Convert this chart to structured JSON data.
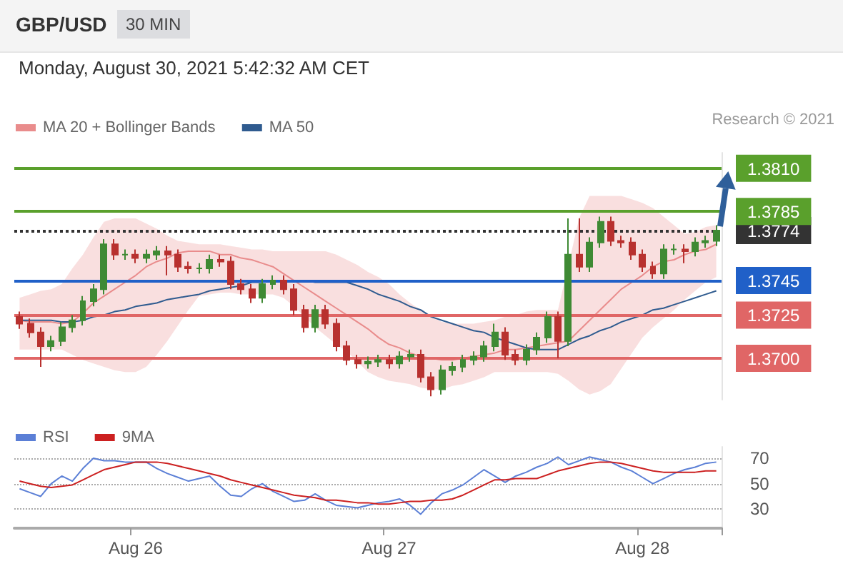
{
  "chart_data": [
    {
      "type": "candlestick",
      "title": "GBP/USD",
      "subtitle": "Monday, August 30, 2021 5:42:32 AM CET",
      "annotations": [
        "30 MIN",
        "Research © 2021"
      ],
      "categories": [
        null,
        null,
        null,
        null,
        null,
        null,
        null,
        null,
        null,
        null,
        null,
        null,
        null,
        null,
        null,
        null,
        null,
        null,
        null,
        null,
        null,
        null,
        null,
        null,
        null,
        null,
        null,
        null,
        null,
        null,
        null,
        null,
        null,
        null,
        null,
        null,
        null,
        null,
        null,
        null,
        null,
        null,
        null,
        null,
        null,
        null,
        null,
        null,
        null,
        null,
        null,
        null,
        null,
        null,
        null,
        null,
        null,
        null,
        null,
        null,
        null,
        null,
        null,
        null,
        null,
        null,
        null
      ],
      "ohlc": [
        [
          1.3724,
          1.3727,
          1.3717,
          1.372
        ],
        [
          1.372,
          1.3723,
          1.3712,
          1.3715
        ],
        [
          1.3715,
          1.3718,
          1.3695,
          1.3707
        ],
        [
          1.3707,
          1.3713,
          1.3704,
          1.371
        ],
        [
          1.371,
          1.3721,
          1.3707,
          1.3718
        ],
        [
          1.3718,
          1.3725,
          1.3715,
          1.3722
        ],
        [
          1.3722,
          1.3736,
          1.3719,
          1.3733
        ],
        [
          1.3733,
          1.3743,
          1.373,
          1.374
        ],
        [
          1.374,
          1.3769,
          1.3737,
          1.3766
        ],
        [
          1.3766,
          1.3769,
          1.3757,
          1.376
        ],
        [
          1.376,
          1.3763,
          1.3757,
          1.376
        ],
        [
          1.376,
          1.3763,
          1.3755,
          1.3758
        ],
        [
          1.3758,
          1.3763,
          1.3755,
          1.376
        ],
        [
          1.376,
          1.3765,
          1.3757,
          1.3762
        ],
        [
          1.3762,
          1.3765,
          1.3748,
          1.376
        ],
        [
          1.376,
          1.3763,
          1.375,
          1.3753
        ],
        [
          1.3753,
          1.3756,
          1.3749,
          1.3752
        ],
        [
          1.3752,
          1.3755,
          1.3749,
          1.3752
        ],
        [
          1.3752,
          1.376,
          1.3749,
          1.3757
        ],
        [
          1.3757,
          1.376,
          1.3753,
          1.3756
        ],
        [
          1.3756,
          1.3759,
          1.374,
          1.3743
        ],
        [
          1.3743,
          1.3746,
          1.3737,
          1.374
        ],
        [
          1.374,
          1.3743,
          1.3732,
          1.3735
        ],
        [
          1.3735,
          1.3746,
          1.3732,
          1.3743
        ],
        [
          1.3743,
          1.3748,
          1.374,
          1.3745
        ],
        [
          1.3745,
          1.3748,
          1.3737,
          1.374
        ],
        [
          1.374,
          1.3743,
          1.3725,
          1.3728
        ],
        [
          1.3728,
          1.3731,
          1.3715,
          1.3718
        ],
        [
          1.3718,
          1.3731,
          1.3715,
          1.3728
        ],
        [
          1.3728,
          1.3731,
          1.3717,
          1.372
        ],
        [
          1.372,
          1.3723,
          1.3704,
          1.3707
        ],
        [
          1.3707,
          1.371,
          1.3696,
          1.3699
        ],
        [
          1.3699,
          1.3702,
          1.3694,
          1.3697
        ],
        [
          1.3697,
          1.3701,
          1.3694,
          1.3698
        ],
        [
          1.3698,
          1.3702,
          1.3695,
          1.3699
        ],
        [
          1.3699,
          1.3702,
          1.3694,
          1.3697
        ],
        [
          1.3697,
          1.3704,
          1.3694,
          1.3701
        ],
        [
          1.3701,
          1.3705,
          1.3698,
          1.3702
        ],
        [
          1.3702,
          1.3705,
          1.3686,
          1.3689
        ],
        [
          1.3689,
          1.3692,
          1.3678,
          1.3682
        ],
        [
          1.3682,
          1.3696,
          1.3679,
          1.3693
        ],
        [
          1.3693,
          1.3698,
          1.369,
          1.3695
        ],
        [
          1.3695,
          1.3702,
          1.3692,
          1.3699
        ],
        [
          1.3699,
          1.3704,
          1.3696,
          1.3701
        ],
        [
          1.3701,
          1.371,
          1.3698,
          1.3707
        ],
        [
          1.3707,
          1.372,
          1.3704,
          1.3715
        ],
        [
          1.3715,
          1.3718,
          1.3699,
          1.3702
        ],
        [
          1.3702,
          1.3705,
          1.3696,
          1.3699
        ],
        [
          1.3699,
          1.3708,
          1.3696,
          1.3705
        ],
        [
          1.3705,
          1.3715,
          1.3702,
          1.3712
        ],
        [
          1.3712,
          1.3727,
          1.3709,
          1.3724
        ],
        [
          1.3724,
          1.3727,
          1.37,
          1.371
        ],
        [
          1.371,
          1.3781,
          1.3707,
          1.376
        ],
        [
          1.376,
          1.3781,
          1.375,
          1.3753
        ],
        [
          1.3753,
          1.377,
          1.375,
          1.3767
        ],
        [
          1.3767,
          1.3782,
          1.3764,
          1.3779
        ],
        [
          1.3779,
          1.3782,
          1.3765,
          1.3768
        ],
        [
          1.3768,
          1.3771,
          1.3764,
          1.3767
        ],
        [
          1.3767,
          1.377,
          1.3757,
          1.376
        ],
        [
          1.376,
          1.3763,
          1.375,
          1.3753
        ],
        [
          1.3753,
          1.3756,
          1.3746,
          1.3749
        ],
        [
          1.3749,
          1.3766,
          1.3746,
          1.3763
        ],
        [
          1.3763,
          1.3766,
          1.376,
          1.3763
        ],
        [
          1.3763,
          1.3766,
          1.3755,
          1.3762
        ],
        [
          1.3762,
          1.377,
          1.3759,
          1.3767
        ],
        [
          1.3767,
          1.3771,
          1.3764,
          1.3768
        ],
        [
          1.3768,
          1.3777,
          1.3765,
          1.3774
        ]
      ],
      "colors": [
        "#b8312f",
        "#b8312f",
        "#b8312f",
        "#3f8a34",
        "#3f8a34",
        "#3f8a34",
        "#3f8a34",
        "#3f8a34",
        "#3f8a34",
        "#b8312f",
        "#3f8a34",
        "#b8312f",
        "#3f8a34",
        "#3f8a34",
        "#b8312f",
        "#b8312f",
        "#b8312f",
        "#3f8a34",
        "#3f8a34",
        "#b8312f",
        "#b8312f",
        "#b8312f",
        "#b8312f",
        "#3f8a34",
        "#3f8a34",
        "#b8312f",
        "#b8312f",
        "#b8312f",
        "#3f8a34",
        "#b8312f",
        "#b8312f",
        "#b8312f",
        "#b8312f",
        "#3f8a34",
        "#3f8a34",
        "#b8312f",
        "#3f8a34",
        "#3f8a34",
        "#b8312f",
        "#b8312f",
        "#3f8a34",
        "#3f8a34",
        "#3f8a34",
        "#3f8a34",
        "#3f8a34",
        "#3f8a34",
        "#b8312f",
        "#b8312f",
        "#3f8a34",
        "#3f8a34",
        "#3f8a34",
        "#b8312f",
        "#3f8a34",
        "#b8312f",
        "#3f8a34",
        "#3f8a34",
        "#b8312f",
        "#b8312f",
        "#b8312f",
        "#b8312f",
        "#b8312f",
        "#3f8a34",
        "#3f8a34",
        "#b8312f",
        "#3f8a34",
        "#3f8a34",
        "#3f8a34"
      ],
      "series": [
        {
          "name": "MA 20 + Bollinger Bands",
          "type": "line",
          "color": "#e98c8c",
          "values": [
            1.3722,
            1.3721,
            1.3721,
            1.3721,
            1.372,
            1.3721,
            1.3726,
            1.3732,
            1.3736,
            1.374,
            1.3744,
            1.3748,
            1.3753,
            1.3756,
            1.3758,
            1.3761,
            1.3762,
            1.3762,
            1.3762,
            1.376,
            1.376,
            1.3758,
            1.3757,
            1.3755,
            1.3753,
            1.3749,
            1.3745,
            1.3741,
            1.3737,
            1.3733,
            1.3729,
            1.3725,
            1.3721,
            1.3717,
            1.3712,
            1.3708,
            1.3706,
            1.3703,
            1.3701,
            1.37,
            1.3699,
            1.3699,
            1.37,
            1.3701,
            1.3702,
            1.3703,
            1.3705,
            1.3705,
            1.3706,
            1.3707,
            1.3708,
            1.3709,
            1.371,
            1.3716,
            1.3722,
            1.3728,
            1.3734,
            1.374,
            1.3744,
            1.3748,
            1.3753,
            1.3756,
            1.3757,
            1.376,
            1.3762,
            1.3763,
            1.3766
          ],
          "upper": [
            1.3735,
            1.3737,
            1.3739,
            1.374,
            1.3743,
            1.3752,
            1.376,
            1.377,
            1.3779,
            1.3781,
            1.3781,
            1.3781,
            1.3778,
            1.3775,
            1.3771,
            1.3768,
            1.3767,
            1.3766,
            1.3766,
            1.3766,
            1.3765,
            1.3764,
            1.3763,
            1.3763,
            1.3762,
            1.3762,
            1.3762,
            1.3762,
            1.3762,
            1.3762,
            1.376,
            1.3757,
            1.3754,
            1.375,
            1.3747,
            1.3743,
            1.3737,
            1.3732,
            1.3728,
            1.3724,
            1.3721,
            1.372,
            1.372,
            1.372,
            1.3721,
            1.3722,
            1.3724,
            1.3725,
            1.3727,
            1.3728,
            1.3728,
            1.3728,
            1.3754,
            1.3781,
            1.3794,
            1.3794,
            1.3794,
            1.3794,
            1.3792,
            1.379,
            1.3787,
            1.3782,
            1.3777,
            1.3772,
            1.3773,
            1.3776,
            1.3777
          ],
          "lower": [
            1.3705,
            1.3705,
            1.3705,
            1.3705,
            1.3705,
            1.3702,
            1.3699,
            1.3697,
            1.3695,
            1.3693,
            1.3692,
            1.3692,
            1.3695,
            1.3702,
            1.371,
            1.3719,
            1.3728,
            1.3736,
            1.3737,
            1.3738,
            1.3738,
            1.3737,
            1.3737,
            1.3737,
            1.3737,
            1.3735,
            1.373,
            1.3724,
            1.3718,
            1.3713,
            1.3708,
            1.3704,
            1.3698,
            1.3692,
            1.3689,
            1.3687,
            1.3686,
            1.3685,
            1.3683,
            1.3682,
            1.3682,
            1.3684,
            1.3685,
            1.3687,
            1.3689,
            1.3692,
            1.3692,
            1.3692,
            1.3692,
            1.3692,
            1.3692,
            1.3691,
            1.3687,
            1.3682,
            1.3679,
            1.3681,
            1.3685,
            1.3694,
            1.3703,
            1.3712,
            1.3718,
            1.3723,
            1.3728,
            1.3734,
            1.3739,
            1.3744,
            1.3747
          ]
        },
        {
          "name": "MA 50",
          "type": "line",
          "color": "#2f5b8f",
          "values": [
            1.3722,
            1.3722,
            1.3722,
            1.3722,
            1.3721,
            1.3721,
            1.3722,
            1.3724,
            1.3725,
            1.3727,
            1.3728,
            1.373,
            1.3731,
            1.3732,
            1.3734,
            1.3735,
            1.3736,
            1.3737,
            1.3739,
            1.374,
            1.3741,
            1.3742,
            1.3744,
            1.3744,
            1.3745,
            1.3745,
            1.3745,
            1.3745,
            1.3744,
            1.3744,
            1.3744,
            1.3744,
            1.3742,
            1.374,
            1.3737,
            1.3735,
            1.3733,
            1.373,
            1.3728,
            1.3724,
            1.3722,
            1.372,
            1.3718,
            1.3716,
            1.3715,
            1.3712,
            1.371,
            1.3708,
            1.3706,
            1.3705,
            1.3705,
            1.3705,
            1.3708,
            1.3711,
            1.3713,
            1.3716,
            1.3718,
            1.3721,
            1.3723,
            1.3725,
            1.3728,
            1.3729,
            1.3731,
            1.3733,
            1.3735,
            1.3737,
            1.3739
          ]
        }
      ],
      "ylim": [
        1.3676,
        1.3819
      ],
      "yticks": [
        {
          "value": 1.37,
          "label": "1.3700"
        },
        {
          "value": 1.3725,
          "label": "1.3725"
        },
        {
          "value": 1.3745,
          "label": "1.3745"
        },
        {
          "value": 1.3774,
          "label": "1.3774"
        },
        {
          "value": 1.3785,
          "label": "1.3785"
        },
        {
          "value": 1.381,
          "label": "1.3810"
        }
      ],
      "tick_labels": "y",
      "grid": false,
      "legend": "top left",
      "ref_lines": [
        {
          "axis": "y",
          "value": 1.381,
          "color": "#5aa02c"
        },
        {
          "axis": "y",
          "value": 1.3785,
          "color": "#5aa02c"
        },
        {
          "axis": "y",
          "value": 1.3774,
          "color": "#333333",
          "line_style": "dotted"
        },
        {
          "axis": "y",
          "value": 1.3745,
          "color": "#2060c8"
        },
        {
          "axis": "y",
          "value": 1.3725,
          "color": "#e06666"
        },
        {
          "axis": "y",
          "value": 1.37,
          "color": "#e06666"
        }
      ]
    },
    {
      "type": "line",
      "categories": [
        null,
        null,
        null,
        null,
        null,
        null,
        null,
        null,
        null,
        null,
        null,
        "Aug 26",
        null,
        null,
        null,
        null,
        null,
        null,
        null,
        null,
        null,
        null,
        null,
        null,
        null,
        null,
        null,
        null,
        null,
        null,
        null,
        null,
        null,
        null,
        null,
        "Aug 27",
        null,
        null,
        null,
        null,
        null,
        null,
        null,
        null,
        null,
        null,
        null,
        null,
        null,
        null,
        null,
        null,
        null,
        null,
        null,
        null,
        null,
        null,
        null,
        "Aug 28",
        null,
        null,
        null,
        null,
        null,
        null,
        null
      ],
      "series": [
        {
          "name": "RSI",
          "color": "#5b7fd6",
          "values": [
            46,
            43,
            40,
            50,
            56,
            52,
            62,
            70,
            68,
            68,
            67,
            67,
            67,
            62,
            58,
            55,
            52,
            54,
            56,
            48,
            41,
            40,
            46,
            50,
            44,
            40,
            36,
            37,
            42,
            37,
            33,
            32,
            31,
            33,
            35,
            36,
            38,
            33,
            26,
            35,
            42,
            45,
            49,
            55,
            61,
            56,
            51,
            56,
            59,
            63,
            66,
            71,
            65,
            68,
            71,
            69,
            67,
            63,
            60,
            55,
            50,
            54,
            58,
            61,
            63,
            66,
            67
          ]
        },
        {
          "name": "9MA",
          "color": "#cc2020",
          "values": [
            52,
            50,
            48,
            47,
            48,
            49,
            53,
            57,
            61,
            63,
            65,
            67,
            67,
            67,
            66,
            64,
            62,
            60,
            58,
            56,
            53,
            51,
            49,
            47,
            45,
            43,
            41,
            40,
            39,
            37,
            37,
            36,
            35,
            35,
            34,
            34,
            35,
            36,
            36,
            37,
            37,
            38,
            41,
            45,
            49,
            53,
            53,
            54,
            54,
            54,
            57,
            60,
            62,
            64,
            66,
            67,
            67,
            66,
            64,
            62,
            60,
            59,
            59,
            59,
            59,
            60,
            60
          ]
        }
      ],
      "ylim": [
        15,
        79
      ],
      "yticks": [
        30,
        50,
        70
      ],
      "grid": "y",
      "legend": "top left"
    }
  ]
}
